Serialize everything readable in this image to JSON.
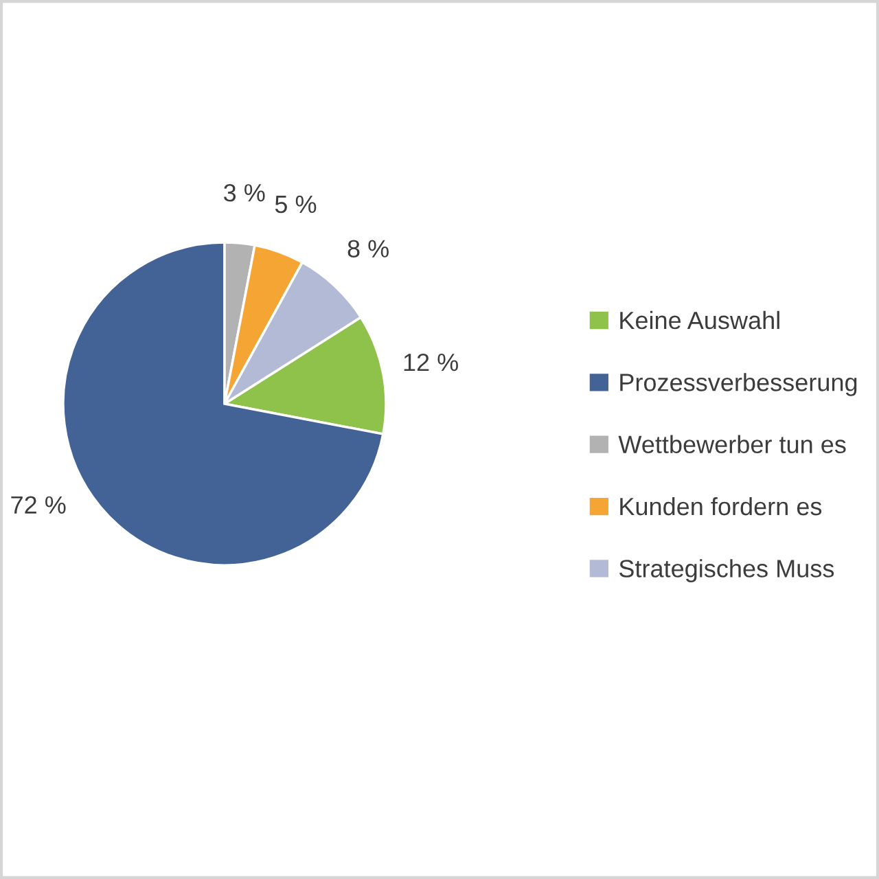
{
  "chart_data": {
    "type": "pie",
    "categories": [
      "Keine Auswahl",
      "Prozessverbesserung",
      "Wettbewerber tun es",
      "Kunden fordern es",
      "Strategisches Muss"
    ],
    "values": [
      12,
      72,
      3,
      5,
      8
    ],
    "colors": [
      "#8fc24a",
      "#436396",
      "#b3b2b3",
      "#f5a533",
      "#b3bad5"
    ],
    "value_labels": [
      "12 %",
      "72 %",
      "3 %",
      "5 %",
      "8 %"
    ],
    "legend": "right"
  }
}
